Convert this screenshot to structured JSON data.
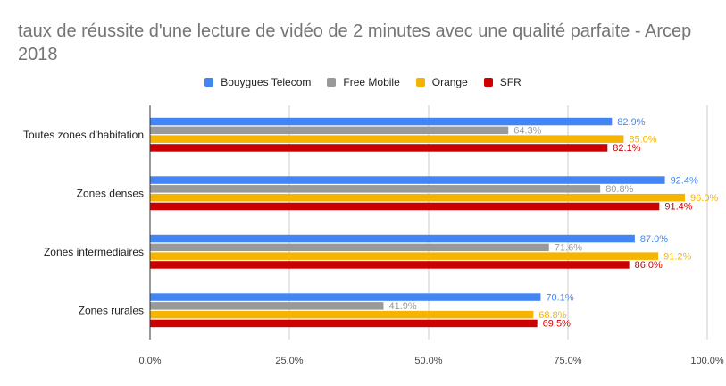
{
  "chart_data": {
    "type": "bar",
    "orientation": "horizontal",
    "title": "taux de réussite d'une lecture de vidéo de 2 minutes avec une qualité parfaite - Arcep 2018",
    "categories": [
      "Toutes zones d'habitation",
      "Zones denses",
      "Zones intermediaires",
      "Zones rurales"
    ],
    "series": [
      {
        "name": "Bouygues Telecom",
        "color": "#4285f4",
        "values": [
          82.9,
          92.4,
          87.0,
          70.1
        ],
        "labels": [
          "82.9%",
          "92.4%",
          "87.0%",
          "70.1%"
        ]
      },
      {
        "name": "Free Mobile",
        "color": "#999999",
        "values": [
          64.3,
          80.8,
          71.6,
          41.9
        ],
        "labels": [
          "64.3%",
          "80.8%",
          "71.6%",
          "41.9%"
        ]
      },
      {
        "name": "Orange",
        "color": "#f4b400",
        "values": [
          85.0,
          96.0,
          91.2,
          68.8
        ],
        "labels": [
          "85.0%",
          "96.0%",
          "91.2%",
          "68.8%"
        ]
      },
      {
        "name": "SFR",
        "color": "#cc0000",
        "values": [
          82.1,
          91.4,
          86.0,
          69.5
        ],
        "labels": [
          "82.1%",
          "91.4%",
          "86.0%",
          "69.5%"
        ]
      }
    ],
    "xlim": [
      0,
      100
    ],
    "xticks": [
      0,
      25,
      50,
      75,
      100
    ],
    "xtick_labels": [
      "0.0%",
      "25.0%",
      "50.0%",
      "75.0%",
      "100.0%"
    ],
    "xlabel": "",
    "ylabel": "",
    "grid": true,
    "legend_position": "top"
  }
}
